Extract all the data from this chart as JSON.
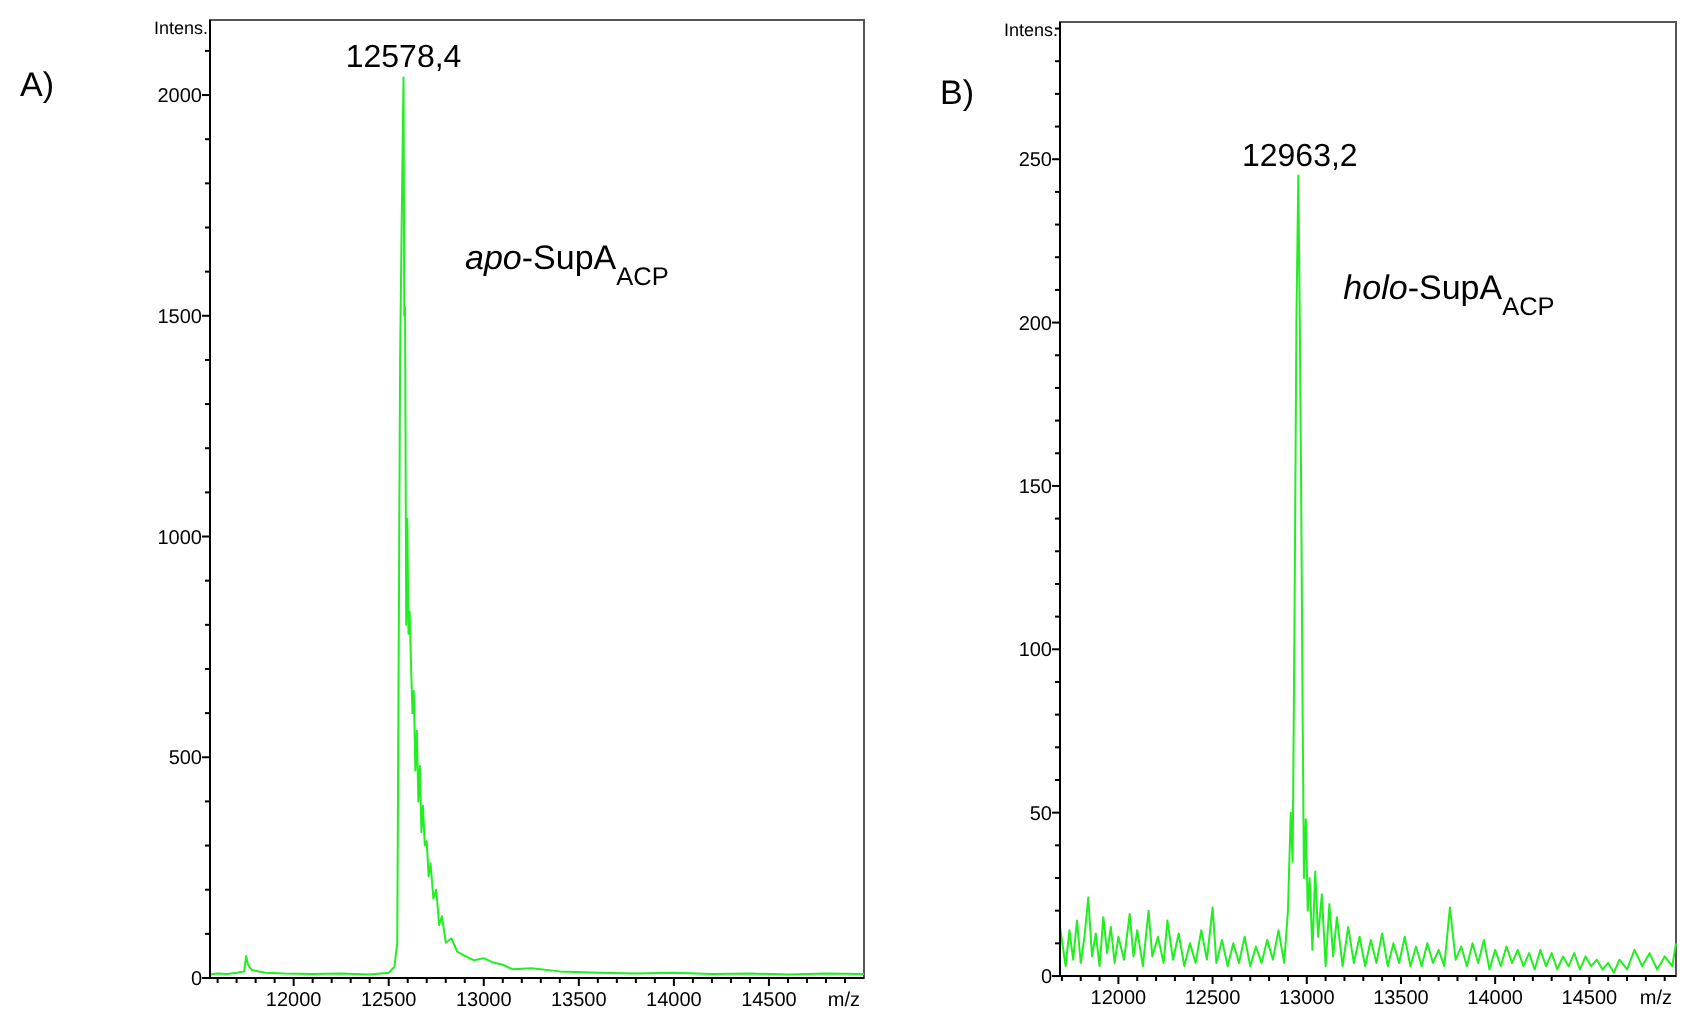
{
  "chart_data": [
    {
      "type": "line",
      "title": "A)",
      "xlabel": "m/z",
      "ylabel": "Intens.",
      "xlim": [
        11560,
        15000
      ],
      "ylim": [
        0,
        2170
      ],
      "xticks": [
        {
          "value": 11600,
          "label": null
        },
        {
          "value": 11700,
          "label": null
        },
        {
          "value": 11800,
          "label": null
        },
        {
          "value": 11900,
          "label": null
        },
        12000,
        {
          "value": 12100,
          "label": null
        },
        {
          "value": 12200,
          "label": null
        },
        {
          "value": 12300,
          "label": null
        },
        {
          "value": 12400,
          "label": null
        },
        12500,
        {
          "value": 12600,
          "label": null
        },
        {
          "value": 12700,
          "label": null
        },
        {
          "value": 12800,
          "label": null
        },
        {
          "value": 12900,
          "label": null
        },
        13000,
        {
          "value": 13100,
          "label": null
        },
        {
          "value": 13200,
          "label": null
        },
        {
          "value": 13300,
          "label": null
        },
        {
          "value": 13400,
          "label": null
        },
        13500,
        {
          "value": 13600,
          "label": null
        },
        {
          "value": 13700,
          "label": null
        },
        {
          "value": 13800,
          "label": null
        },
        {
          "value": 13900,
          "label": null
        },
        14000,
        {
          "value": 14100,
          "label": null
        },
        {
          "value": 14200,
          "label": null
        },
        {
          "value": 14300,
          "label": null
        },
        {
          "value": 14400,
          "label": null
        },
        14500,
        {
          "value": 14600,
          "label": null
        },
        {
          "value": 14700,
          "label": null
        },
        {
          "value": 14800,
          "label": null
        },
        {
          "value": 14900,
          "label": null
        }
      ],
      "yticks": [
        0,
        {
          "value": 100,
          "label": null
        },
        {
          "value": 200,
          "label": null
        },
        {
          "value": 300,
          "label": null
        },
        {
          "value": 400,
          "label": null
        },
        500,
        {
          "value": 600,
          "label": null
        },
        {
          "value": 700,
          "label": null
        },
        {
          "value": 800,
          "label": null
        },
        {
          "value": 900,
          "label": null
        },
        1000,
        {
          "value": 1100,
          "label": null
        },
        {
          "value": 1200,
          "label": null
        },
        {
          "value": 1300,
          "label": null
        },
        {
          "value": 1400,
          "label": null
        },
        1500,
        {
          "value": 1600,
          "label": null
        },
        {
          "value": 1700,
          "label": null
        },
        {
          "value": 1800,
          "label": null
        },
        {
          "value": 1900,
          "label": null
        },
        2000,
        {
          "value": 2100,
          "label": null
        }
      ],
      "annotations": [
        {
          "text": "12578,4",
          "x": 12578,
          "y": 2040
        },
        "apo-SupA$_{ACP}$"
      ],
      "series": [
        {
          "color": "#22ee22",
          "x": [
            11560,
            11600,
            11650,
            11700,
            11740,
            11750,
            11760,
            11780,
            11850,
            11950,
            12100,
            12250,
            12400,
            12500,
            12530,
            12545,
            12552,
            12560,
            12568,
            12578,
            12582,
            12586,
            12592,
            12598,
            12604,
            12610,
            12618,
            12625,
            12632,
            12640,
            12648,
            12656,
            12664,
            12672,
            12680,
            12690,
            12700,
            12710,
            12720,
            12735,
            12750,
            12765,
            12780,
            12800,
            12830,
            12860,
            12900,
            12950,
            13000,
            13050,
            13100,
            13150,
            13250,
            13400,
            13600,
            13800,
            14000,
            14200,
            14400,
            14600,
            14800,
            15000
          ],
          "values": [
            8,
            10,
            9,
            12,
            15,
            50,
            30,
            18,
            12,
            10,
            9,
            10,
            8,
            12,
            25,
            80,
            700,
            1400,
            1700,
            2040,
            1500,
            1520,
            800,
            1040,
            780,
            830,
            700,
            600,
            650,
            470,
            560,
            400,
            480,
            330,
            390,
            300,
            310,
            230,
            260,
            180,
            200,
            120,
            140,
            80,
            90,
            60,
            50,
            40,
            45,
            35,
            30,
            20,
            22,
            15,
            12,
            10,
            12,
            9,
            10,
            8,
            10,
            9
          ]
        }
      ]
    },
    {
      "type": "line",
      "title": "B)",
      "xlabel": "m/z",
      "ylabel": "Intens.",
      "xlim": [
        11690,
        14960
      ],
      "ylim": [
        0,
        292
      ],
      "xticks": [
        {
          "value": 11700,
          "label": null
        },
        {
          "value": 11800,
          "label": null
        },
        {
          "value": 11900,
          "label": null
        },
        12000,
        {
          "value": 12100,
          "label": null
        },
        {
          "value": 12200,
          "label": null
        },
        {
          "value": 12300,
          "label": null
        },
        {
          "value": 12400,
          "label": null
        },
        12500,
        {
          "value": 12600,
          "label": null
        },
        {
          "value": 12700,
          "label": null
        },
        {
          "value": 12800,
          "label": null
        },
        {
          "value": 12900,
          "label": null
        },
        13000,
        {
          "value": 13100,
          "label": null
        },
        {
          "value": 13200,
          "label": null
        },
        {
          "value": 13300,
          "label": null
        },
        {
          "value": 13400,
          "label": null
        },
        13500,
        {
          "value": 13600,
          "label": null
        },
        {
          "value": 13700,
          "label": null
        },
        {
          "value": 13800,
          "label": null
        },
        {
          "value": 13900,
          "label": null
        },
        14000,
        {
          "value": 14100,
          "label": null
        },
        {
          "value": 14200,
          "label": null
        },
        {
          "value": 14300,
          "label": null
        },
        {
          "value": 14400,
          "label": null
        },
        14500,
        {
          "value": 14600,
          "label": null
        },
        {
          "value": 14700,
          "label": null
        },
        {
          "value": 14800,
          "label": null
        },
        {
          "value": 14900,
          "label": null
        }
      ],
      "yticks": [
        0,
        {
          "value": 10,
          "label": null
        },
        {
          "value": 20,
          "label": null
        },
        {
          "value": 30,
          "label": null
        },
        {
          "value": 40,
          "label": null
        },
        50,
        {
          "value": 60,
          "label": null
        },
        {
          "value": 70,
          "label": null
        },
        {
          "value": 80,
          "label": null
        },
        {
          "value": 90,
          "label": null
        },
        100,
        {
          "value": 110,
          "label": null
        },
        {
          "value": 120,
          "label": null
        },
        {
          "value": 130,
          "label": null
        },
        {
          "value": 140,
          "label": null
        },
        150,
        {
          "value": 160,
          "label": null
        },
        {
          "value": 170,
          "label": null
        },
        {
          "value": 180,
          "label": null
        },
        {
          "value": 190,
          "label": null
        },
        200,
        {
          "value": 210,
          "label": null
        },
        {
          "value": 220,
          "label": null
        },
        {
          "value": 230,
          "label": null
        },
        {
          "value": 240,
          "label": null
        },
        250,
        {
          "value": 260,
          "label": null
        },
        {
          "value": 270,
          "label": null
        },
        {
          "value": 280,
          "label": null
        },
        {
          "value": 290,
          "label": null
        }
      ],
      "annotations": [
        {
          "text": "12963,2",
          "x": 12963,
          "y": 245
        },
        "holo-SupA$_{ACP}$"
      ],
      "series": [
        {
          "color": "#22ee22",
          "x": [
            11690,
            11720,
            11740,
            11760,
            11780,
            11800,
            11820,
            11840,
            11860,
            11880,
            11900,
            11920,
            11940,
            11960,
            11980,
            12000,
            12030,
            12060,
            12080,
            12100,
            12130,
            12160,
            12180,
            12210,
            12240,
            12260,
            12290,
            12320,
            12350,
            12380,
            12410,
            12440,
            12470,
            12500,
            12520,
            12550,
            12580,
            12610,
            12640,
            12670,
            12700,
            12730,
            12760,
            12790,
            12820,
            12850,
            12880,
            12900,
            12915,
            12925,
            12935,
            12945,
            12955,
            12963,
            12970,
            12978,
            12985,
            12995,
            13005,
            13015,
            13030,
            13045,
            13060,
            13080,
            13100,
            13120,
            13140,
            13160,
            13190,
            13220,
            13250,
            13280,
            13310,
            13340,
            13370,
            13400,
            13430,
            13460,
            13490,
            13520,
            13550,
            13580,
            13610,
            13640,
            13670,
            13700,
            13730,
            13760,
            13790,
            13820,
            13850,
            13880,
            13910,
            13940,
            13970,
            14000,
            14030,
            14060,
            14090,
            14120,
            14150,
            14180,
            14210,
            14240,
            14270,
            14300,
            14330,
            14360,
            14390,
            14420,
            14450,
            14480,
            14510,
            14540,
            14570,
            14600,
            14630,
            14660,
            14700,
            14740,
            14780,
            14820,
            14860,
            14900,
            14940,
            14960
          ],
          "values": [
            15,
            3,
            14,
            5,
            17,
            4,
            12,
            24,
            6,
            13,
            3,
            18,
            7,
            15,
            4,
            12,
            5,
            19,
            6,
            14,
            3,
            20,
            6,
            12,
            4,
            17,
            5,
            13,
            3,
            10,
            4,
            14,
            5,
            21,
            4,
            11,
            3,
            10,
            4,
            12,
            3,
            9,
            4,
            11,
            5,
            14,
            4,
            20,
            50,
            35,
            110,
            200,
            245,
            200,
            150,
            80,
            30,
            48,
            20,
            30,
            8,
            32,
            12,
            25,
            3,
            22,
            6,
            18,
            3,
            15,
            4,
            12,
            3,
            11,
            4,
            13,
            3,
            10,
            4,
            12,
            3,
            9,
            3,
            10,
            4,
            8,
            3,
            21,
            5,
            9,
            3,
            10,
            4,
            11,
            2,
            8,
            3,
            9,
            4,
            8,
            3,
            7,
            2,
            8,
            3,
            7,
            2,
            6,
            3,
            7,
            2,
            6,
            3,
            5,
            2,
            4,
            1,
            5,
            2,
            8,
            3,
            7,
            2,
            6,
            3,
            10
          ]
        }
      ]
    }
  ]
}
